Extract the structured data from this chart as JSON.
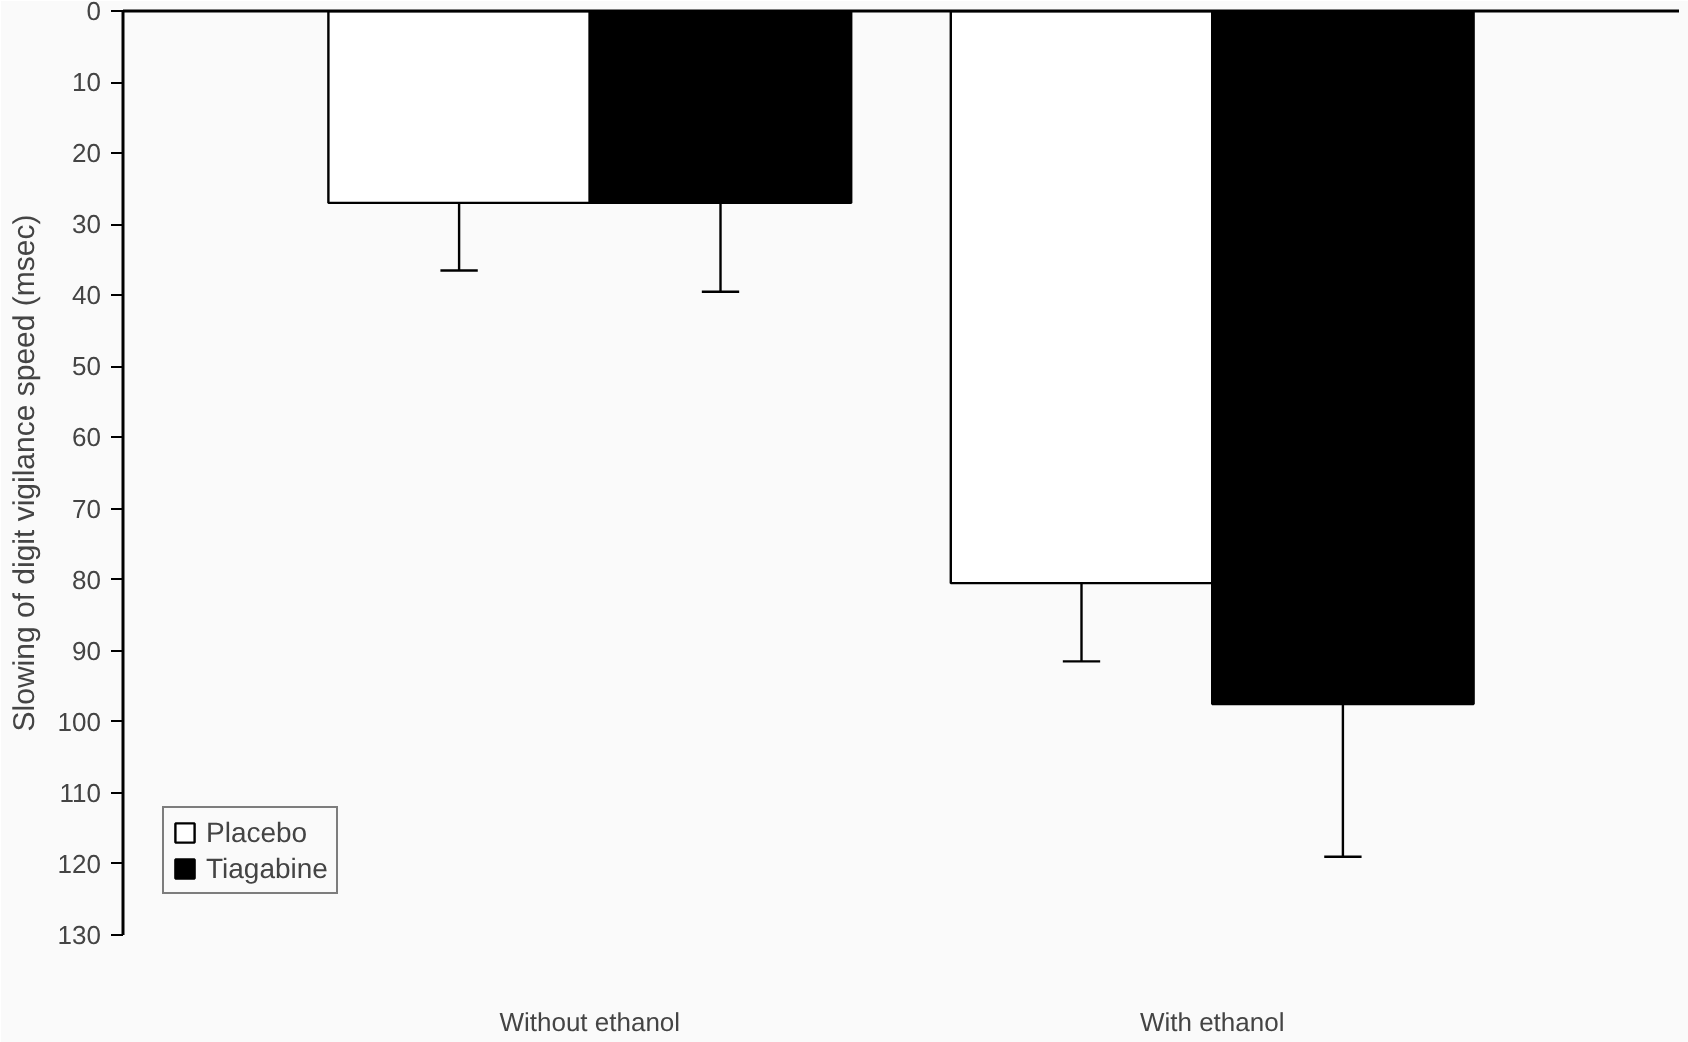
{
  "chart_data": {
    "type": "bar",
    "ylabel": "Slowing of digit vigilance speed (msec)",
    "categories": [
      "Without ethanol",
      "With ethanol"
    ],
    "series": [
      {
        "name": "Placebo",
        "color": "#ffffff",
        "values": [
          27,
          80.5
        ],
        "errors": [
          [
            27,
            36.5
          ],
          [
            80.5,
            91.5
          ]
        ]
      },
      {
        "name": "Tiagabine",
        "color": "#000000",
        "values": [
          27,
          97.5
        ],
        "errors": [
          [
            27,
            39.5
          ],
          [
            97.5,
            119
          ]
        ]
      }
    ],
    "ylim": [
      130,
      0
    ],
    "yticks": [
      0,
      10,
      20,
      30,
      40,
      50,
      60,
      70,
      80,
      90,
      100,
      110,
      120,
      130
    ],
    "grid": false,
    "legend": "bottom left"
  }
}
